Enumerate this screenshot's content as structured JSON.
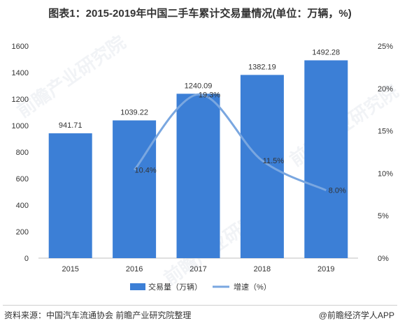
{
  "title": "图表1：2015-2019年中国二手车累计交易量情况(单位：万辆，%)",
  "source": "资料来源：中国汽车流通协会 前瞻产业研究院整理",
  "brand": "@前瞻经济学人APP",
  "watermark": "前瞻产业研究院",
  "colors": {
    "bar": "#3c7fd6",
    "line": "#7aa7e0",
    "axis": "#999999",
    "text": "#333333"
  },
  "chart_data": {
    "type": "bar",
    "categories": [
      "2015",
      "2016",
      "2017",
      "2018",
      "2019"
    ],
    "series": [
      {
        "name": "交易量（万辆）",
        "type": "bar",
        "axis": "left",
        "values": [
          941.71,
          1039.22,
          1240.09,
          1382.19,
          1492.28
        ],
        "labels": [
          "941.71",
          "1039.22",
          "1240.09",
          "1382.19",
          "1492.28"
        ]
      },
      {
        "name": "增速（%）",
        "type": "line",
        "axis": "right",
        "values": [
          null,
          10.4,
          19.3,
          11.5,
          8.0
        ],
        "labels": [
          "",
          "10.4%",
          "19.3%",
          "11.5%",
          "8.0%"
        ]
      }
    ],
    "left_axis": {
      "min": 0,
      "max": 1600,
      "step": 200,
      "ticks": [
        "0",
        "200",
        "400",
        "600",
        "800",
        "1000",
        "1200",
        "1400",
        "1600"
      ]
    },
    "right_axis": {
      "min": 0,
      "max": 25,
      "step": 5,
      "ticks": [
        "0%",
        "5%",
        "10%",
        "15%",
        "20%",
        "25%"
      ]
    },
    "legend_position": "bottom"
  }
}
